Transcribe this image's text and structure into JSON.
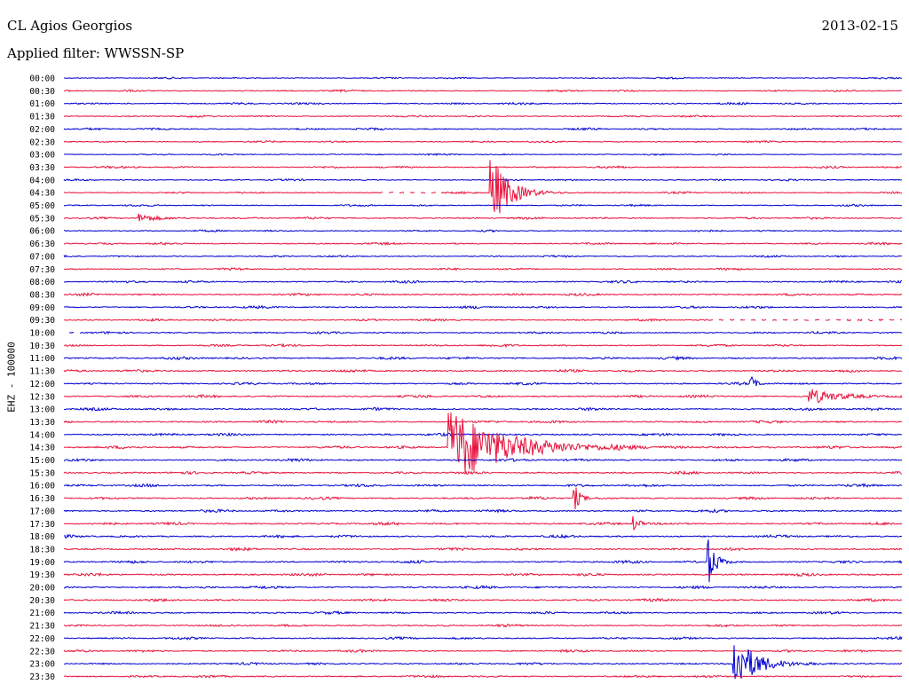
{
  "header": {
    "station": "CL Agios Georgios",
    "date": "2013-02-15",
    "filter": "Applied filter: WWSSN-SP"
  },
  "channel_label": "EHZ - 100000",
  "colors": {
    "even_trace": "#0000d0",
    "odd_trace": "#e8103a"
  },
  "chart_data": {
    "type": "line",
    "title": "CL Agios Georgios",
    "subtitle": "Applied filter: WWSSN-SP",
    "xlabel": "",
    "ylabel": "EHZ - 100000",
    "grid": false,
    "legend": "none",
    "categories": [
      "00:00",
      "00:30",
      "01:00",
      "01:30",
      "02:00",
      "02:30",
      "03:00",
      "03:30",
      "04:00",
      "04:30",
      "05:00",
      "05:30",
      "06:00",
      "06:30",
      "07:00",
      "07:30",
      "08:00",
      "08:30",
      "09:00",
      "09:30",
      "10:00",
      "10:30",
      "11:00",
      "11:30",
      "12:00",
      "12:30",
      "13:00",
      "13:30",
      "14:00",
      "14:30",
      "15:00",
      "15:30",
      "16:00",
      "16:30",
      "17:00",
      "17:30",
      "18:00",
      "18:30",
      "19:00",
      "19:30",
      "20:00",
      "20:30",
      "21:00",
      "21:30",
      "22:00",
      "22:30",
      "23:00",
      "23:30"
    ],
    "noise_level": [
      0.6,
      0.7,
      0.8,
      0.7,
      0.8,
      0.7,
      0.6,
      0.8,
      0.7,
      0.7,
      0.7,
      0.8,
      0.7,
      0.8,
      0.7,
      0.8,
      0.9,
      0.9,
      0.9,
      0.8,
      0.8,
      0.9,
      1.0,
      1.0,
      0.9,
      1.0,
      1.0,
      1.0,
      1.0,
      1.0,
      1.0,
      1.0,
      1.0,
      1.0,
      1.0,
      1.0,
      1.0,
      1.0,
      1.0,
      1.0,
      1.0,
      1.0,
      0.9,
      0.9,
      0.9,
      0.9,
      0.9,
      0.9
    ],
    "events": [
      {
        "row": "04:30",
        "x_fraction": 0.51,
        "amplitude": 42,
        "duration_fraction": 0.02
      },
      {
        "row": "14:30",
        "x_fraction": 0.46,
        "amplitude": 45,
        "duration_fraction": 0.06
      },
      {
        "row": "23:00",
        "x_fraction": 0.8,
        "amplitude": 30,
        "duration_fraction": 0.025
      },
      {
        "row": "19:00",
        "x_fraction": 0.77,
        "amplitude": 26,
        "duration_fraction": 0.008
      },
      {
        "row": "16:30",
        "x_fraction": 0.61,
        "amplitude": 14,
        "duration_fraction": 0.006
      },
      {
        "row": "17:30",
        "x_fraction": 0.68,
        "amplitude": 9,
        "duration_fraction": 0.006
      },
      {
        "row": "12:30",
        "x_fraction": 0.89,
        "amplitude": 9,
        "duration_fraction": 0.03
      },
      {
        "row": "12:00",
        "x_fraction": 0.82,
        "amplitude": 8,
        "duration_fraction": 0.006
      },
      {
        "row": "05:30",
        "x_fraction": 0.09,
        "amplitude": 5,
        "duration_fraction": 0.02
      }
    ],
    "gaps": [
      {
        "row": "09:30",
        "from_fraction": 0.77,
        "to_fraction": 1.0
      },
      {
        "row": "10:00",
        "from_fraction": 0.0,
        "to_fraction": 0.02
      },
      {
        "row": "04:30",
        "from_fraction": 0.38,
        "to_fraction": 0.45
      }
    ]
  }
}
